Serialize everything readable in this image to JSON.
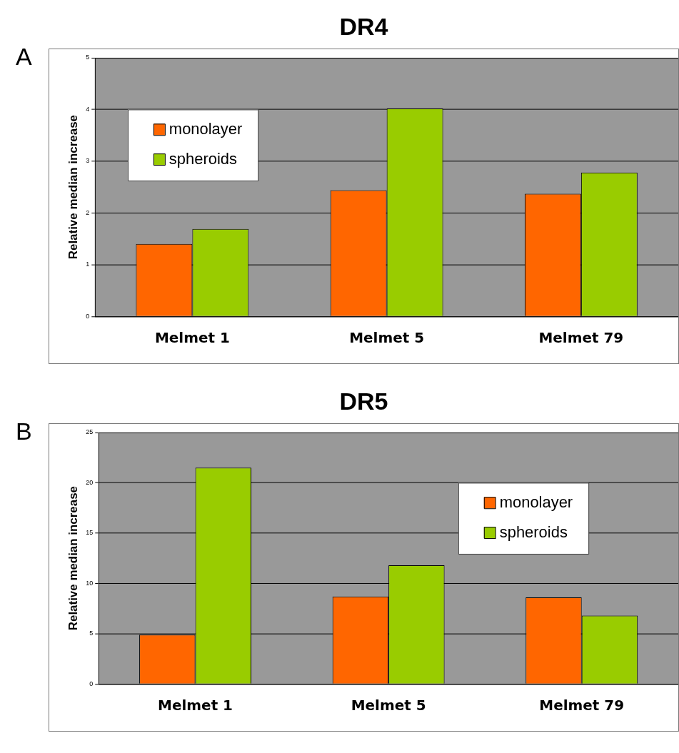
{
  "chart_data": [
    {
      "type": "bar",
      "title": "DR4",
      "ylabel": "Relative median increase",
      "annotations": [
        "A"
      ],
      "categories": [
        "Melmet 1",
        "Melmet 5",
        "Melmet 79"
      ],
      "series": [
        {
          "name": "monolayer",
          "color": "#ff6600",
          "values": [
            1.4,
            2.44,
            2.37
          ]
        },
        {
          "name": "spheroids",
          "color": "#99cc00",
          "values": [
            1.69,
            4.02,
            2.78
          ]
        }
      ],
      "ylim": [
        0,
        5
      ],
      "yticks": [
        0,
        1,
        2,
        3,
        4,
        5
      ],
      "grid": "y",
      "legend": "top left"
    },
    {
      "type": "bar",
      "title": "DR5",
      "ylabel": "Relative median increase",
      "annotations": [
        "B"
      ],
      "categories": [
        "Melmet 1",
        "Melmet 5",
        "Melmet 79"
      ],
      "series": [
        {
          "name": "monolayer",
          "color": "#ff6600",
          "values": [
            4.9,
            8.7,
            8.6
          ]
        },
        {
          "name": "spheroids",
          "color": "#99cc00",
          "values": [
            21.5,
            11.8,
            6.8
          ]
        }
      ],
      "ylim": [
        0,
        25
      ],
      "yticks": [
        0,
        5,
        10,
        15,
        20,
        25
      ],
      "grid": "y",
      "legend": "top right"
    }
  ]
}
